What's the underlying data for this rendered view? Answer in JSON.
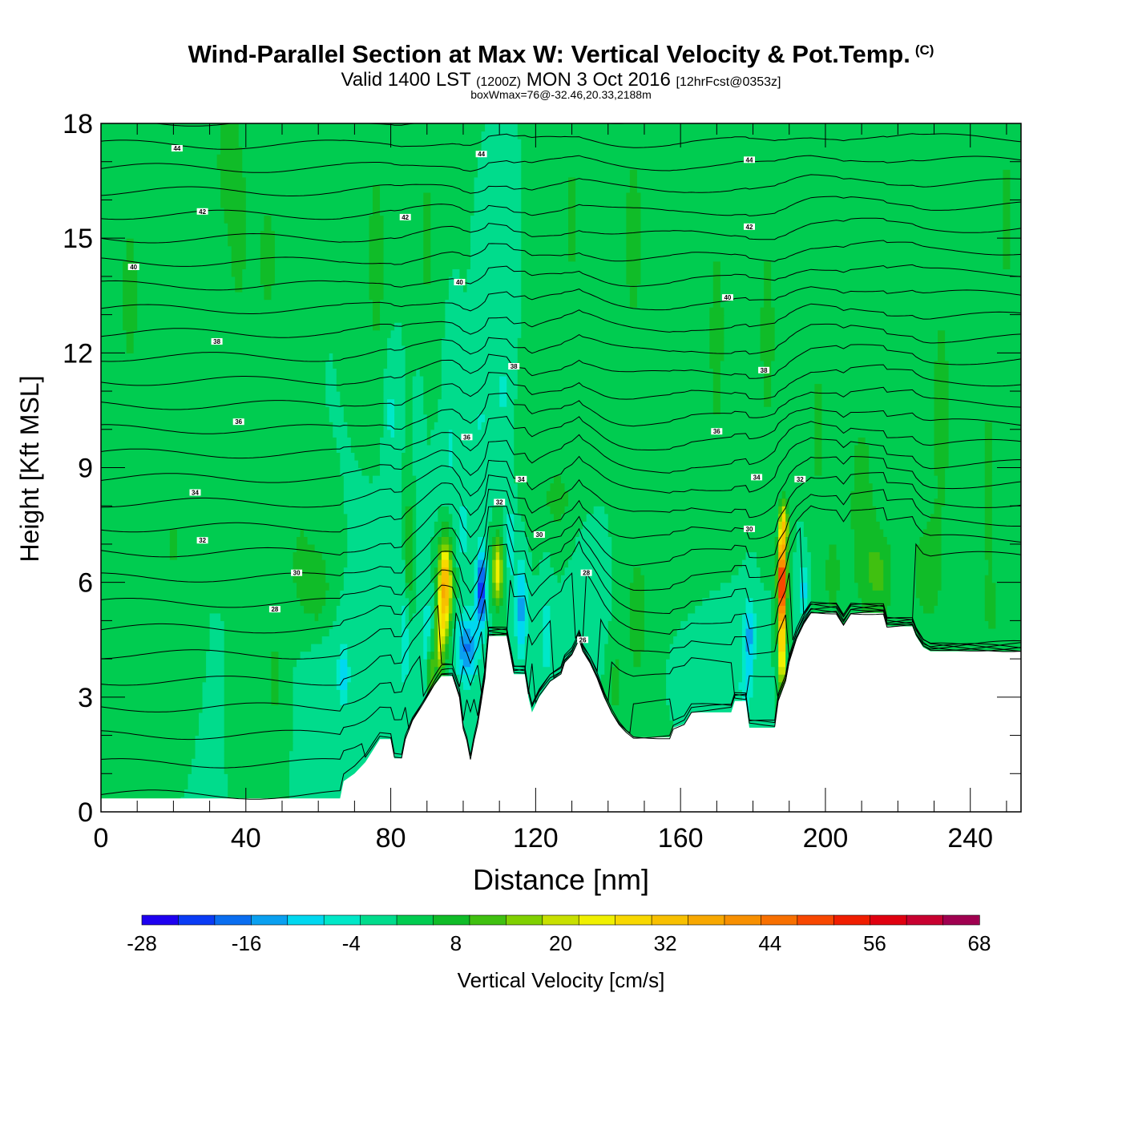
{
  "header": {
    "title": "Wind-Parallel Section at Max W: Vertical Velocity & Pot.Temp.",
    "copyright": "(C)",
    "valid_prefix": "Valid 1400 LST",
    "valid_utc": "(1200Z)",
    "valid_date": "MON 3 Oct 2016",
    "forecast": "[12hrFcst@0353z]",
    "box_info": "boxWmax=76@-32.46,20.33,2188m"
  },
  "chart_data": {
    "type": "heatmap",
    "xlabel": "Distance [nm]",
    "ylabel": "Height [Kft MSL]",
    "xlim": [
      0,
      254
    ],
    "ylim": [
      0,
      18
    ],
    "xticks": [
      0,
      40,
      80,
      120,
      160,
      200,
      240
    ],
    "yticks": [
      0,
      3,
      6,
      9,
      12,
      15,
      18
    ],
    "background_value": 0,
    "colorbar": {
      "label": "Vertical Velocity [cm/s]",
      "levels": [
        -28,
        -24,
        -20,
        -16,
        -12,
        -8,
        -4,
        0,
        4,
        8,
        12,
        16,
        20,
        24,
        28,
        32,
        36,
        40,
        44,
        48,
        52,
        56,
        60,
        64,
        68
      ],
      "tick_labels": [
        "-28",
        "-16",
        "-4",
        "8",
        "20",
        "32",
        "44",
        "56",
        "68"
      ],
      "colors": [
        "#1e00f0",
        "#0a3cf5",
        "#0a6ef0",
        "#0aa0f0",
        "#00d8f0",
        "#00e8c8",
        "#00dc8c",
        "#00cc50",
        "#10bc28",
        "#40c010",
        "#80d000",
        "#c8e000",
        "#f0f000",
        "#f8d800",
        "#f8c000",
        "#f8a800",
        "#f89000",
        "#f87000",
        "#f84800",
        "#f01e00",
        "#e00010",
        "#c80030",
        "#a00050"
      ]
    },
    "terrain": [
      [
        0,
        0.35
      ],
      [
        66,
        0.35
      ],
      [
        67,
        0.8
      ],
      [
        70,
        1.0
      ],
      [
        73,
        1.3
      ],
      [
        75,
        1.6
      ],
      [
        77,
        1.9
      ],
      [
        80,
        1.9
      ],
      [
        81,
        1.4
      ],
      [
        83,
        1.4
      ],
      [
        84,
        1.9
      ],
      [
        86,
        2.4
      ],
      [
        88,
        2.7
      ],
      [
        90,
        3.0
      ],
      [
        92,
        3.3
      ],
      [
        94,
        3.55
      ],
      [
        97,
        3.55
      ],
      [
        99,
        3.0
      ],
      [
        100,
        2.2
      ],
      [
        101,
        1.9
      ],
      [
        102,
        1.4
      ],
      [
        103,
        1.9
      ],
      [
        104,
        2.3
      ],
      [
        106,
        3.5
      ],
      [
        107,
        4.6
      ],
      [
        112,
        4.6
      ],
      [
        113,
        4.1
      ],
      [
        114,
        3.6
      ],
      [
        117,
        3.6
      ],
      [
        118,
        3.0
      ],
      [
        119,
        2.6
      ],
      [
        121,
        3.0
      ],
      [
        124,
        3.4
      ],
      [
        127,
        3.6
      ],
      [
        128,
        3.9
      ],
      [
        130,
        4.1
      ],
      [
        132,
        4.5
      ],
      [
        133,
        4.2
      ],
      [
        135,
        3.9
      ],
      [
        137,
        3.5
      ],
      [
        139,
        3.0
      ],
      [
        141,
        2.6
      ],
      [
        143,
        2.3
      ],
      [
        145,
        2.1
      ],
      [
        147,
        1.95
      ],
      [
        157,
        1.95
      ],
      [
        158,
        2.2
      ],
      [
        161,
        2.3
      ],
      [
        163,
        2.6
      ],
      [
        174,
        2.6
      ],
      [
        175,
        2.9
      ],
      [
        178,
        2.9
      ],
      [
        179,
        2.2
      ],
      [
        186,
        2.2
      ],
      [
        187,
        2.9
      ],
      [
        189,
        3.4
      ],
      [
        190,
        3.9
      ],
      [
        192,
        4.5
      ],
      [
        194,
        4.9
      ],
      [
        196,
        5.2
      ],
      [
        203,
        5.2
      ],
      [
        205,
        4.9
      ],
      [
        207,
        5.2
      ],
      [
        216,
        5.2
      ],
      [
        217,
        4.85
      ],
      [
        224,
        4.85
      ],
      [
        225,
        4.6
      ],
      [
        227,
        4.3
      ],
      [
        229,
        4.2
      ],
      [
        254,
        4.2
      ]
    ],
    "features": [
      {
        "x": 95,
        "y": 5.9,
        "sx": 1.8,
        "sy": 1.2,
        "w": 34
      },
      {
        "x": 93.5,
        "y": 4.5,
        "sx": 1.3,
        "sy": 1.0,
        "w": 18
      },
      {
        "x": 91,
        "y": 3.6,
        "sx": 1.2,
        "sy": 0.7,
        "w": 14
      },
      {
        "x": 109.5,
        "y": 6.3,
        "sx": 1.5,
        "sy": 0.8,
        "w": 24
      },
      {
        "x": 188,
        "y": 6.0,
        "sx": 1.1,
        "sy": 1.1,
        "w": 58
      },
      {
        "x": 188.5,
        "y": 7.5,
        "sx": 1.2,
        "sy": 0.6,
        "w": 22
      },
      {
        "x": 188,
        "y": 4.2,
        "sx": 1.0,
        "sy": 0.9,
        "w": 28
      },
      {
        "x": 85,
        "y": 6.8,
        "sx": 1.0,
        "sy": 1.5,
        "w": 10
      },
      {
        "x": 105,
        "y": 5.8,
        "sx": 1.4,
        "sy": 1.0,
        "w": -24
      },
      {
        "x": 101,
        "y": 4.3,
        "sx": 2.8,
        "sy": 0.9,
        "w": -17
      },
      {
        "x": 90,
        "y": 4.5,
        "sx": 1.6,
        "sy": 1.4,
        "w": -7
      },
      {
        "x": 84,
        "y": 4.5,
        "sx": 1.3,
        "sy": 1.5,
        "w": -6
      },
      {
        "x": 67,
        "y": 3.6,
        "sx": 1.3,
        "sy": 0.7,
        "w": -12
      },
      {
        "x": 62,
        "y": 3.5,
        "sx": 6,
        "sy": 2.0,
        "w": -3
      },
      {
        "x": 78,
        "y": 4.5,
        "sx": 5,
        "sy": 2.5,
        "w": -3
      },
      {
        "x": 116,
        "y": 5.3,
        "sx": 1.6,
        "sy": 1.2,
        "w": -14
      },
      {
        "x": 113,
        "y": 7.0,
        "sx": 1.2,
        "sy": 1.0,
        "w": -8
      },
      {
        "x": 123,
        "y": 4.6,
        "sx": 1.6,
        "sy": 1.6,
        "w": -6
      },
      {
        "x": 134,
        "y": 5.5,
        "sx": 4,
        "sy": 1.6,
        "w": -4
      },
      {
        "x": 179,
        "y": 4.6,
        "sx": 1.5,
        "sy": 1.0,
        "w": -13
      },
      {
        "x": 178,
        "y": 3.2,
        "sx": 2.0,
        "sy": 0.9,
        "w": -6
      },
      {
        "x": 194,
        "y": 5.8,
        "sx": 1.2,
        "sy": 0.7,
        "w": -10
      },
      {
        "x": 168,
        "y": 4.5,
        "sx": 9,
        "sy": 1.3,
        "w": -3
      },
      {
        "x": 100,
        "y": 7.2,
        "sx": 1.2,
        "sy": 0.8,
        "w": -6
      },
      {
        "x": 80,
        "y": 10.4,
        "sx": 1.6,
        "sy": 1.5,
        "w": -5
      },
      {
        "x": 88,
        "y": 10.0,
        "sx": 1.0,
        "sy": 1.2,
        "w": -5
      },
      {
        "x": 96,
        "y": 10.2,
        "sx": 1.2,
        "sy": 1.5,
        "w": -4
      },
      {
        "x": 105,
        "y": 10.3,
        "sx": 1.0,
        "sy": 1.2,
        "w": -5
      },
      {
        "x": 111,
        "y": 11.0,
        "sx": 1.2,
        "sy": 1.4,
        "w": -5
      },
      {
        "x": 99,
        "y": 8.6,
        "sx": 6,
        "sy": 1.2,
        "w": -3
      },
      {
        "x": 8,
        "y": 13.5,
        "sx": 3,
        "sy": 2.5,
        "w": 6
      },
      {
        "x": 35,
        "y": 17.0,
        "sx": 4,
        "sy": 2.0,
        "w": 6
      },
      {
        "x": 38,
        "y": 15.0,
        "sx": 2.5,
        "sy": 2.0,
        "w": 6
      },
      {
        "x": 46,
        "y": 14.5,
        "sx": 4,
        "sy": 2.5,
        "w": 5
      },
      {
        "x": 76,
        "y": 14.5,
        "sx": 3,
        "sy": 3.0,
        "w": 6
      },
      {
        "x": 90,
        "y": 15.0,
        "sx": 2.5,
        "sy": 3.0,
        "w": 5
      },
      {
        "x": 130,
        "y": 15.5,
        "sx": 2.0,
        "sy": 2.5,
        "w": 5
      },
      {
        "x": 147,
        "y": 15.0,
        "sx": 3,
        "sy": 3.0,
        "w": 6
      },
      {
        "x": 170,
        "y": 12.5,
        "sx": 2.5,
        "sy": 3.0,
        "w": 6
      },
      {
        "x": 184,
        "y": 12.5,
        "sx": 2.5,
        "sy": 3.0,
        "w": 6
      },
      {
        "x": 198,
        "y": 10.0,
        "sx": 2.0,
        "sy": 3.0,
        "w": 5
      },
      {
        "x": 210,
        "y": 8.0,
        "sx": 4,
        "sy": 3.0,
        "w": 6
      },
      {
        "x": 232,
        "y": 10.5,
        "sx": 3,
        "sy": 3.5,
        "w": 6
      },
      {
        "x": 245,
        "y": 8.5,
        "sx": 2.0,
        "sy": 3.0,
        "w": 6
      },
      {
        "x": 250,
        "y": 15.5,
        "sx": 2.0,
        "sy": 3.0,
        "w": 5
      },
      {
        "x": 60,
        "y": 5.8,
        "sx": 4,
        "sy": 1.3,
        "w": 7
      },
      {
        "x": 55,
        "y": 6.5,
        "sx": 3,
        "sy": 1.5,
        "w": 5
      },
      {
        "x": 48,
        "y": 3.5,
        "sx": 3,
        "sy": 1.5,
        "w": 5
      },
      {
        "x": 20,
        "y": 7.0,
        "sx": 2.0,
        "sy": 1.0,
        "w": 5
      },
      {
        "x": 160,
        "y": 7.5,
        "sx": 10,
        "sy": 2.5,
        "w": 4
      },
      {
        "x": 148,
        "y": 5.0,
        "sx": 3,
        "sy": 1.8,
        "w": 6
      },
      {
        "x": 142,
        "y": 3.3,
        "sx": 2.0,
        "sy": 1.0,
        "w": 6
      },
      {
        "x": 202,
        "y": 6.2,
        "sx": 2.0,
        "sy": 1.0,
        "w": 8
      },
      {
        "x": 215,
        "y": 6.2,
        "sx": 4,
        "sy": 1.3,
        "w": 8
      },
      {
        "x": 228,
        "y": 6.3,
        "sx": 4,
        "sy": 1.5,
        "w": 7
      },
      {
        "x": 246,
        "y": 5.3,
        "sx": 2.0,
        "sy": 0.8,
        "w": 5
      },
      {
        "x": 126,
        "y": 8.2,
        "sx": 6,
        "sy": 1.2,
        "w": 5
      }
    ],
    "isentropes": {
      "base_theta": 18,
      "step_theta": 1,
      "count": 28,
      "label_interval": 2
    },
    "contour_labels": [
      {
        "x": 21,
        "y": 17.35,
        "t": "44"
      },
      {
        "x": 105,
        "y": 17.2,
        "t": "44"
      },
      {
        "x": 179,
        "y": 17.05,
        "t": "44"
      },
      {
        "x": 28,
        "y": 15.7,
        "t": "42"
      },
      {
        "x": 84,
        "y": 15.55,
        "t": "42"
      },
      {
        "x": 179,
        "y": 15.3,
        "t": "42"
      },
      {
        "x": 9,
        "y": 14.25,
        "t": "40"
      },
      {
        "x": 99,
        "y": 13.85,
        "t": "40"
      },
      {
        "x": 173,
        "y": 13.45,
        "t": "40"
      },
      {
        "x": 32,
        "y": 12.3,
        "t": "38"
      },
      {
        "x": 114,
        "y": 11.65,
        "t": "38"
      },
      {
        "x": 183,
        "y": 11.55,
        "t": "38"
      },
      {
        "x": 38,
        "y": 10.2,
        "t": "36"
      },
      {
        "x": 101,
        "y": 9.8,
        "t": "36"
      },
      {
        "x": 170,
        "y": 9.95,
        "t": "36"
      },
      {
        "x": 26,
        "y": 8.35,
        "t": "34"
      },
      {
        "x": 116,
        "y": 8.7,
        "t": "34"
      },
      {
        "x": 181,
        "y": 8.75,
        "t": "34"
      },
      {
        "x": 28,
        "y": 7.1,
        "t": "32"
      },
      {
        "x": 110,
        "y": 8.1,
        "t": "32"
      },
      {
        "x": 193,
        "y": 8.7,
        "t": "32"
      },
      {
        "x": 54,
        "y": 6.25,
        "t": "30"
      },
      {
        "x": 121,
        "y": 7.25,
        "t": "30"
      },
      {
        "x": 179,
        "y": 7.4,
        "t": "30"
      },
      {
        "x": 48,
        "y": 5.3,
        "t": "28"
      },
      {
        "x": 134,
        "y": 6.25,
        "t": "28"
      },
      {
        "x": 133,
        "y": 4.5,
        "t": "26"
      }
    ]
  }
}
